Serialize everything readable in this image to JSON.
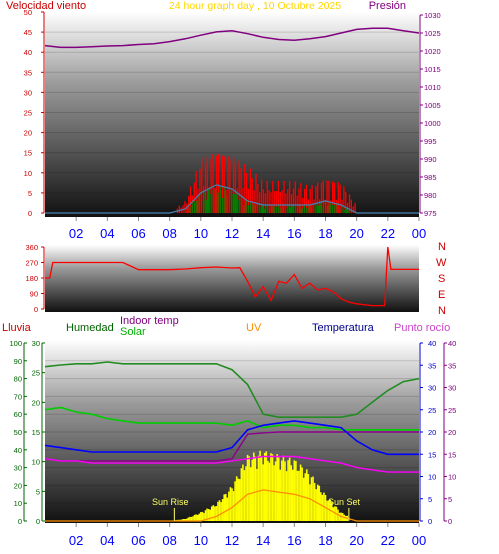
{
  "colors": {
    "wind": "#ff0000",
    "gust": "#ff0000",
    "wind_avg": "#008000",
    "wind_dir": "#4682b4",
    "pressure": "#800080",
    "direction": "#ff0000",
    "rain": "#ff0000",
    "humidity": "#008000",
    "indoor": "#800080",
    "solar": "#00cc00",
    "uv": "#ff8c00",
    "temperature": "#0000ff",
    "dewpoint": "#800080",
    "solar_fill": "#ffff00",
    "x_ticks": "#0000ff",
    "title": "#ffd700",
    "indoor_temp": "#ff00ff",
    "temp_avg": "#00c000"
  },
  "header": {
    "wind_label": "Velocidad viento",
    "title": "24 hour graph day , 10 Octubre 2025",
    "pressure_label": "Presión"
  },
  "x_ticks": [
    "02",
    "04",
    "06",
    "08",
    "10",
    "12",
    "14",
    "16",
    "18",
    "20",
    "22",
    "00"
  ],
  "panel3_labels": {
    "rain": "Lluvia",
    "humidity": "Humedad",
    "indoor": "Indoor temp",
    "solar": "Solar",
    "uv": "UV",
    "temperature": "Temperatura",
    "dewpoint": "Punto rocío"
  },
  "compass": [
    "N",
    "W",
    "S",
    "E",
    "N"
  ],
  "annotations": {
    "sunrise": "Sun Rise",
    "sunset": "Sun Set"
  },
  "chart_data": [
    {
      "type": "line",
      "panel": "wind_pressure",
      "ylim_left": [
        0,
        50
      ],
      "yticks_left": [
        0,
        5,
        10,
        15,
        20,
        25,
        30,
        35,
        40,
        45,
        50
      ],
      "ylim_right": [
        975,
        1030
      ],
      "yticks_right": [
        975,
        980,
        985,
        990,
        995,
        1000,
        1005,
        1010,
        1015,
        1020,
        1025,
        1030
      ],
      "x_hours": [
        0,
        1,
        2,
        3,
        4,
        5,
        6,
        7,
        8,
        9,
        10,
        11,
        12,
        13,
        14,
        15,
        16,
        17,
        18,
        19,
        20,
        21,
        22,
        23,
        24
      ],
      "series": [
        {
          "name": "Presión",
          "values": [
            1021.5,
            1021,
            1021,
            1021.2,
            1021.4,
            1021.5,
            1021.8,
            1022,
            1022.6,
            1023.4,
            1024.4,
            1025.3,
            1025.6,
            1024.8,
            1023.8,
            1023.2,
            1023,
            1023.4,
            1024,
            1025,
            1026,
            1026.3,
            1026.3,
            1025.6,
            1025
          ]
        },
        {
          "name": "gust",
          "values": [
            0,
            0,
            0,
            0,
            0,
            0,
            0,
            0,
            0,
            3,
            14,
            16,
            15,
            12,
            8,
            8,
            8,
            7,
            9,
            8,
            2,
            0,
            0,
            0,
            0
          ]
        },
        {
          "name": "avg",
          "values": [
            0,
            0,
            0,
            0,
            0,
            0,
            0,
            0,
            0,
            1,
            5,
            7,
            6,
            3,
            2,
            2,
            2,
            2,
            3,
            2,
            0,
            0,
            0,
            0,
            0
          ]
        }
      ]
    },
    {
      "type": "line",
      "panel": "wind_direction",
      "ylim": [
        0,
        360
      ],
      "yticks": [
        0,
        90,
        180,
        270,
        360
      ],
      "x_hours": [
        0,
        0.3,
        0.5,
        1,
        2,
        3,
        4,
        5,
        6,
        7,
        8,
        9,
        10,
        11,
        12,
        12.5,
        13,
        13.5,
        14,
        14.5,
        15,
        15.5,
        16,
        16.5,
        17,
        17.5,
        18,
        18.5,
        19,
        19.5,
        20,
        21,
        21.8,
        22,
        22.2,
        23,
        24
      ],
      "series": [
        {
          "name": "dir",
          "values": [
            180,
            180,
            270,
            270,
            270,
            270,
            270,
            270,
            228,
            228,
            228,
            232,
            240,
            244,
            238,
            240,
            160,
            70,
            130,
            50,
            160,
            150,
            200,
            120,
            150,
            110,
            120,
            100,
            60,
            40,
            30,
            20,
            20,
            360,
            230,
            230,
            230
          ]
        }
      ]
    },
    {
      "type": "line",
      "panel": "environment",
      "ylim_rain": [
        0,
        100
      ],
      "yticks_rain": [
        0,
        10,
        20,
        30,
        40,
        50,
        60,
        70,
        80,
        90,
        100
      ],
      "ylim_humidity": [
        0,
        30
      ],
      "yticks_humidity": [
        0,
        5,
        10,
        15,
        20,
        25,
        30
      ],
      "ylim_right": [
        0,
        40
      ],
      "yticks_right": [
        0,
        5,
        10,
        15,
        20,
        25,
        30,
        35,
        40
      ],
      "x_hours": [
        0,
        1,
        2,
        3,
        4,
        5,
        6,
        7,
        8,
        9,
        10,
        11,
        12,
        13,
        14,
        15,
        16,
        17,
        18,
        19,
        20,
        21,
        22,
        23,
        24
      ],
      "series": [
        {
          "name": "Humedad",
          "values": [
            26,
            26.3,
            26.5,
            26.5,
            26.8,
            26.5,
            26.5,
            26.5,
            26.5,
            26.5,
            26.5,
            26.5,
            25.5,
            23,
            18,
            17.5,
            17.5,
            17.5,
            17.5,
            17.5,
            18,
            20,
            22,
            23.5,
            24
          ]
        },
        {
          "name": "Indoor temp",
          "values": [
            14,
            13.5,
            13.5,
            13.5,
            13.5,
            13.5,
            13.5,
            13.5,
            13.5,
            13.5,
            13.5,
            13.5,
            14,
            19.5,
            19.8,
            20,
            20,
            20,
            20,
            20,
            20,
            20,
            20,
            20,
            20
          ]
        },
        {
          "name": "Solar",
          "values": [
            25,
            25.5,
            24.5,
            24,
            23,
            22.5,
            22,
            22,
            22,
            22,
            22,
            22,
            21.5,
            22.5,
            21,
            21.5,
            21.5,
            21,
            21,
            20.5,
            20.5,
            20.5,
            20.5,
            20.5,
            20.5
          ]
        },
        {
          "name": "Temperatura",
          "values": [
            17,
            16.5,
            16,
            15.5,
            15.5,
            15.5,
            15.5,
            15.5,
            15.5,
            15.5,
            15.5,
            15.5,
            16.5,
            20.5,
            21.5,
            22,
            22.5,
            22,
            21.5,
            21,
            18,
            16,
            15,
            15,
            15
          ]
        },
        {
          "name": "Punto rocío",
          "values": [
            14,
            13.5,
            13.5,
            13,
            13,
            13,
            13,
            13,
            13,
            13,
            13,
            13,
            13.5,
            14,
            14.5,
            14.5,
            14.5,
            14,
            13.5,
            13,
            12,
            11.5,
            11,
            11,
            11
          ]
        },
        {
          "name": "UV",
          "values": [
            0,
            0,
            0,
            0,
            0,
            0,
            0,
            0,
            0,
            0,
            0,
            1,
            3,
            6,
            7,
            6.5,
            6,
            5,
            3,
            1,
            0,
            0,
            0,
            0,
            0
          ]
        },
        {
          "name": "solar_fill",
          "values": [
            0,
            0,
            0,
            0,
            0,
            0,
            0,
            0,
            0,
            0.5,
            2,
            4,
            8,
            15,
            16,
            15,
            14,
            11,
            6,
            2,
            0,
            0,
            0,
            0,
            0
          ]
        }
      ],
      "sunrise_hour": 8.3,
      "sunset_hour": 19.5
    }
  ]
}
